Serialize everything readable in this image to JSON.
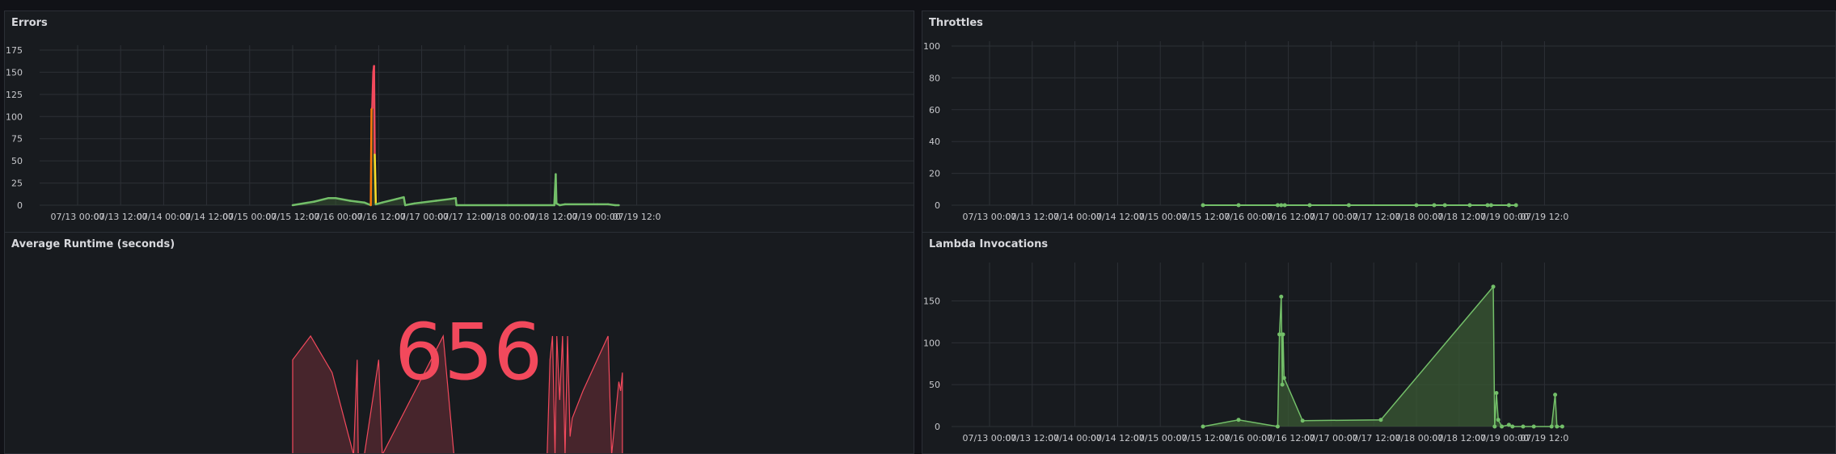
{
  "colors": {
    "background": "#111217",
    "panel_bg": "#181b1f",
    "grid": "#2c3036",
    "green": "#73bf69",
    "green_fill": "#3a5a34",
    "red": "#f2495c",
    "yellow": "#fade2a",
    "orange": "#ff780a",
    "text": "#c7c8cc"
  },
  "x_ticks": [
    "07/13 00:00",
    "07/13 12:00",
    "07/14 00:00",
    "07/14 12:00",
    "07/15 00:00",
    "07/15 12:00",
    "07/16 00:00",
    "07/16 12:00",
    "07/17 00:00",
    "07/17 12:00",
    "07/18 00:00",
    "07/18 12:00",
    "07/19 00:00",
    "07/19 12:0"
  ],
  "panels": {
    "errors": {
      "title": "Errors"
    },
    "throttles": {
      "title": "Throttles"
    },
    "avg_runtime": {
      "title": "Average Runtime (seconds)",
      "value": "656"
    },
    "invocations": {
      "title": "Lambda Invocations"
    }
  },
  "chart_data": [
    {
      "name": "errors",
      "type": "line",
      "title": "Errors",
      "x_unit": "hours since 07/13 00:00",
      "y_ticks": [
        0,
        25,
        50,
        75,
        100,
        125,
        150,
        175
      ],
      "ylim": [
        0,
        175
      ],
      "xlim": [
        0,
        164
      ],
      "points": [
        [
          60,
          0
        ],
        [
          66,
          4
        ],
        [
          70,
          8
        ],
        [
          72,
          8
        ],
        [
          76,
          5
        ],
        [
          78,
          4
        ],
        [
          80,
          3
        ],
        [
          81.8,
          0
        ],
        [
          82,
          108
        ],
        [
          82.2,
          110
        ],
        [
          82.5,
          150
        ],
        [
          82.7,
          157
        ],
        [
          82.9,
          57
        ],
        [
          83.2,
          1
        ],
        [
          85,
          3
        ],
        [
          89,
          7
        ],
        [
          91,
          9
        ],
        [
          91.4,
          0
        ],
        [
          94,
          2
        ],
        [
          100,
          5
        ],
        [
          104,
          7
        ],
        [
          105.5,
          8
        ],
        [
          105.7,
          0
        ],
        [
          120,
          0
        ],
        [
          133,
          0
        ],
        [
          133.4,
          35
        ],
        [
          133.6,
          2
        ],
        [
          134.5,
          0
        ],
        [
          136,
          1
        ],
        [
          145,
          1
        ],
        [
          148,
          1
        ],
        [
          150,
          0
        ],
        [
          151,
          0
        ]
      ]
    },
    {
      "name": "throttles",
      "type": "line",
      "title": "Throttles",
      "x_unit": "hours since 07/13 00:00",
      "y_ticks": [
        0,
        20,
        40,
        60,
        80,
        100
      ],
      "ylim": [
        0,
        100
      ],
      "xlim": [
        0,
        164
      ],
      "points": [
        [
          60,
          0
        ],
        [
          70,
          0
        ],
        [
          81,
          0
        ],
        [
          82,
          0
        ],
        [
          83,
          0
        ],
        [
          90,
          0
        ],
        [
          101,
          0
        ],
        [
          120,
          0
        ],
        [
          125,
          0
        ],
        [
          128,
          0
        ],
        [
          135,
          0
        ],
        [
          140,
          0
        ],
        [
          141,
          0
        ],
        [
          146,
          0
        ],
        [
          148,
          0
        ]
      ]
    },
    {
      "name": "average_runtime",
      "type": "area",
      "title": "Average Runtime (seconds)",
      "x_unit": "hours since 07/13 00:00",
      "xlim": [
        0,
        164
      ],
      "value": 656,
      "points": [
        [
          60,
          52
        ],
        [
          65,
          65
        ],
        [
          71,
          45
        ],
        [
          77,
          0
        ],
        [
          78,
          52
        ],
        [
          78.3,
          0
        ],
        [
          79,
          0
        ],
        [
          80,
          0
        ],
        [
          84,
          52
        ],
        [
          85,
          0
        ],
        [
          102,
          65
        ],
        [
          105,
          0
        ],
        [
          113,
          0
        ],
        [
          120,
          0
        ],
        [
          127,
          0
        ],
        [
          131,
          0
        ],
        [
          131.8,
          52
        ],
        [
          132.5,
          65
        ],
        [
          133.2,
          0
        ],
        [
          133.7,
          65
        ],
        [
          134.5,
          30
        ],
        [
          135.3,
          65
        ],
        [
          136,
          0
        ],
        [
          136.7,
          65
        ],
        [
          137.4,
          10
        ],
        [
          138,
          20
        ],
        [
          141,
          35
        ],
        [
          148,
          65
        ],
        [
          149,
          0
        ],
        [
          151,
          40
        ],
        [
          151.5,
          35
        ],
        [
          152,
          45
        ]
      ]
    },
    {
      "name": "lambda_invocations",
      "type": "area",
      "title": "Lambda Invocations",
      "x_unit": "hours since 07/13 00:00",
      "y_ticks": [
        0,
        50,
        100,
        150
      ],
      "ylim": [
        0,
        190
      ],
      "xlim": [
        0,
        164
      ],
      "points": [
        [
          60,
          0
        ],
        [
          70,
          8
        ],
        [
          81,
          0
        ],
        [
          81.5,
          110
        ],
        [
          82,
          155
        ],
        [
          82.3,
          50
        ],
        [
          82.5,
          110
        ],
        [
          82.8,
          58
        ],
        [
          88,
          7
        ],
        [
          110,
          8
        ],
        [
          141.6,
          167
        ],
        [
          142,
          0
        ],
        [
          142.5,
          40
        ],
        [
          143,
          8
        ],
        [
          144,
          0
        ],
        [
          146,
          2
        ],
        [
          147,
          0
        ],
        [
          150,
          0
        ],
        [
          153,
          0
        ],
        [
          158,
          0
        ],
        [
          159,
          38
        ],
        [
          159.5,
          0
        ],
        [
          161,
          0
        ]
      ]
    }
  ]
}
